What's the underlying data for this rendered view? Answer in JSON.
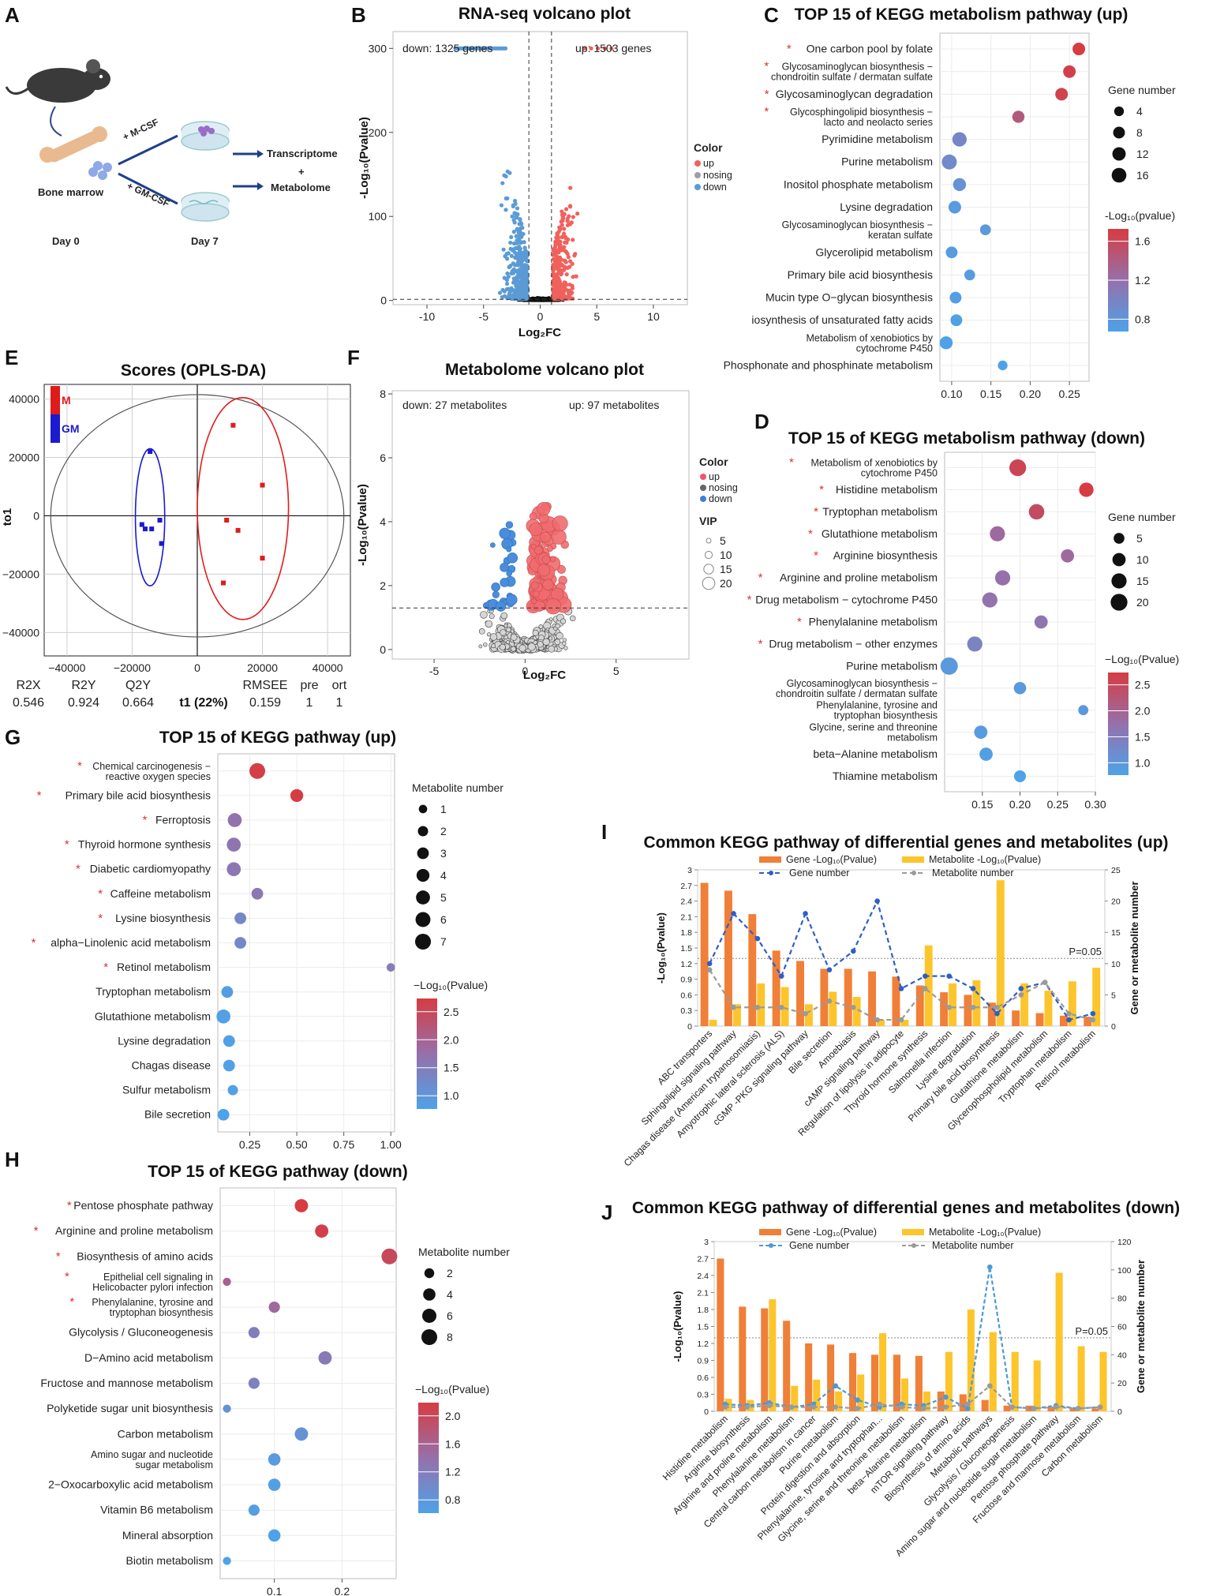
{
  "labels": {
    "A": "A",
    "B": "B",
    "C": "C",
    "D": "D",
    "E": "E",
    "F": "F",
    "G": "G",
    "H": "H",
    "I": "I",
    "J": "J"
  },
  "panelA": {
    "bone_marrow": "Bone marrow",
    "mcsf": "+ M-CSF",
    "gmcsf": "+ GM-CSF",
    "transcriptome": "Transcriptome",
    "plus": "+",
    "metabolome": "Metabolome",
    "day0": "Day 0",
    "day7": "Day 7"
  },
  "panelB": {
    "title": "RNA-seq volcano plot",
    "down_text": "down: 1325 genes",
    "up_text": "up: 1503 genes",
    "xlabel": "Log₂FC",
    "ylabel": "-Log₁₀(Pvalue)",
    "legend_title": "Color",
    "legend_items": [
      "up",
      "nosing",
      "down"
    ],
    "colors": {
      "up": "#f0615c",
      "nosing": "#9e9e9e",
      "down": "#5b9bd5"
    },
    "xticks": [
      -10,
      -5,
      0,
      5,
      10
    ],
    "yticks": [
      0,
      100,
      200,
      300
    ],
    "xlim": [
      -13,
      13
    ],
    "ylim": [
      -5,
      320
    ]
  },
  "panelC": {
    "title": "TOP 15 of  KEGG metabolism pathway (up)",
    "size_legend_title": "Gene number",
    "size_legend": [
      4,
      8,
      12,
      16
    ],
    "color_legend_title": "-Log₁₀(pvalue)",
    "color_ticks": [
      "1.6",
      "1.2",
      "0.8"
    ],
    "xticks": [
      "0.10",
      "0.15",
      "0.20",
      "0.25"
    ],
    "xlim": [
      0.085,
      0.275
    ],
    "rows": [
      {
        "name": "One carbon pool by folate",
        "star": true,
        "x": 0.262,
        "size": 10,
        "p": 1.85
      },
      {
        "name": "Glycosaminoglycan biosynthesis −\nchondroitin sulfate / dermatan sulfate",
        "star": true,
        "x": 0.25,
        "size": 10,
        "p": 1.8
      },
      {
        "name": "Glycosaminoglycan degradation",
        "star": true,
        "x": 0.24,
        "size": 10,
        "p": 1.78
      },
      {
        "name": "Glycosphingolipid biosynthesis −\nlacto and neolacto series",
        "star": true,
        "x": 0.185,
        "size": 9,
        "p": 1.5
      },
      {
        "name": "Pyrimidine metabolism",
        "star": false,
        "x": 0.11,
        "size": 15,
        "p": 0.95
      },
      {
        "name": "Purine metabolism",
        "star": false,
        "x": 0.097,
        "size": 17,
        "p": 0.9
      },
      {
        "name": "Inositol phosphate metabolism",
        "star": false,
        "x": 0.11,
        "size": 11,
        "p": 0.8
      },
      {
        "name": "Lysine degradation",
        "star": false,
        "x": 0.104,
        "size": 10,
        "p": 0.7
      },
      {
        "name": "Glycosaminoglycan biosynthesis −\nkeratan sulfate",
        "star": false,
        "x": 0.143,
        "size": 6,
        "p": 0.72
      },
      {
        "name": "Glycerolipid metabolism",
        "star": false,
        "x": 0.1,
        "size": 8,
        "p": 0.68
      },
      {
        "name": "Primary bile acid biosynthesis",
        "star": false,
        "x": 0.123,
        "size": 6,
        "p": 0.68
      },
      {
        "name": "Mucin type O−glycan biosynthesis",
        "star": false,
        "x": 0.105,
        "size": 8,
        "p": 0.65
      },
      {
        "name": "iosynthesis of unsaturated fatty acids",
        "star": false,
        "x": 0.106,
        "size": 8,
        "p": 0.62
      },
      {
        "name": "Metabolism of xenobiotics by\ncytochrome P450",
        "star": false,
        "x": 0.093,
        "size": 11,
        "p": 0.6
      },
      {
        "name": "Phosphonate and phosphinate metabolism",
        "star": false,
        "x": 0.165,
        "size": 4,
        "p": 0.6
      }
    ]
  },
  "panelD": {
    "title": "TOP 15 of  KEGG metabolism pathway (down)",
    "size_legend_title": "Gene number",
    "size_legend": [
      5,
      10,
      15,
      20
    ],
    "color_legend_title": "−Log₁₀(Pvalue)",
    "color_ticks": [
      "2.5",
      "2.0",
      "1.5",
      "1.0"
    ],
    "xticks": [
      "0.15",
      "0.20",
      "0.25",
      "0.30"
    ],
    "xlim": [
      0.1,
      0.3
    ],
    "rows": [
      {
        "name": "Metabolism of xenobiotics by\ncytochrome P450",
        "star": true,
        "x": 0.197,
        "size": 20,
        "p": 2.6
      },
      {
        "name": "Histidine metabolism",
        "star": true,
        "x": 0.288,
        "size": 13,
        "p": 2.75
      },
      {
        "name": "Tryptophan metabolism",
        "star": true,
        "x": 0.222,
        "size": 16,
        "p": 2.5
      },
      {
        "name": "Glutathione metabolism",
        "star": true,
        "x": 0.17,
        "size": 15,
        "p": 2.0
      },
      {
        "name": "Arginine biosynthesis",
        "star": true,
        "x": 0.263,
        "size": 10,
        "p": 2.0
      },
      {
        "name": "Arginine and proline metabolism",
        "star": true,
        "x": 0.177,
        "size": 15,
        "p": 1.9
      },
      {
        "name": "Drug metabolism − cytochrome P450",
        "star": true,
        "x": 0.16,
        "size": 15,
        "p": 1.85
      },
      {
        "name": "Phenylalanine metabolism",
        "star": true,
        "x": 0.228,
        "size": 10,
        "p": 1.8
      },
      {
        "name": "Drug metabolism − other enzymes",
        "star": true,
        "x": 0.14,
        "size": 15,
        "p": 1.6
      },
      {
        "name": "Purine metabolism",
        "star": false,
        "x": 0.106,
        "size": 22,
        "p": 1.2
      },
      {
        "name": "Glycosaminoglycan biosynthesis −\nchondroitin sulfate / dermatan sulfate",
        "star": false,
        "x": 0.2,
        "size": 8,
        "p": 1.2
      },
      {
        "name": "Phenylalanine, tyrosine and\ntryptophan biosynthesis",
        "star": false,
        "x": 0.284,
        "size": 4,
        "p": 1.2
      },
      {
        "name": "Glycine, serine and threonine\nmetabolism",
        "star": false,
        "x": 0.148,
        "size": 10,
        "p": 1.15
      },
      {
        "name": "beta−Alanine metabolism",
        "star": false,
        "x": 0.155,
        "size": 10,
        "p": 1.1
      },
      {
        "name": "Thiamine metabolism",
        "star": false,
        "x": 0.2,
        "size": 7,
        "p": 1.05
      }
    ]
  },
  "panelE": {
    "title": "Scores (OPLS-DA)",
    "legend": [
      "M",
      "GM"
    ],
    "xlabel": "t1 (22%)",
    "ylabel": "to1",
    "xticks": [
      -40000,
      -20000,
      0,
      20000,
      40000
    ],
    "xtick_labels": [
      "−40000",
      "−20000",
      "0",
      "20000",
      "40000"
    ],
    "yticks": [
      40000,
      20000,
      0,
      -20000,
      -40000
    ],
    "ytick_labels": [
      "40000",
      "20000",
      "0",
      "−20000",
      "−40000"
    ],
    "stats_header": [
      "R2X",
      "R2Y",
      "Q2Y",
      "RMSEE",
      "pre",
      "ort"
    ],
    "stats_values": [
      "0.546",
      "0.924",
      "0.664",
      "0.159",
      "1",
      "1"
    ],
    "M_points": [
      [
        11000,
        31000
      ],
      [
        20000,
        10500
      ],
      [
        9000,
        -1500
      ],
      [
        12500,
        -5000
      ],
      [
        20000,
        -14500
      ],
      [
        8000,
        -23000
      ]
    ],
    "GM_points": [
      [
        -14500,
        22000
      ],
      [
        -17000,
        -3000
      ],
      [
        -16000,
        -4500
      ],
      [
        -14000,
        -4500
      ],
      [
        -11500,
        -1500
      ],
      [
        -11000,
        -9500
      ]
    ]
  },
  "panelF": {
    "title": "Metabolome volcano plot",
    "down_text": "down: 27 metabolites",
    "up_text": "up: 97 metabolites",
    "xlabel": "Log₂FC",
    "ylabel": "-Log₁₀(Pvalue)",
    "legend_title": "Color",
    "legend_items": [
      "up",
      "nosing",
      "down"
    ],
    "vip_title": "VIP",
    "vip_legend": [
      5,
      10,
      15,
      20
    ],
    "xticks": [
      -5,
      0,
      5
    ],
    "yticks": [
      0,
      2,
      4,
      6,
      8
    ]
  },
  "panelG": {
    "title": "TOP 15 of  KEGG pathway (up)",
    "size_legend_title": "Metabolite number",
    "size_legend": [
      1,
      2,
      3,
      4,
      5,
      6,
      7
    ],
    "color_legend_title": "−Log₁₀(Pvalue)",
    "color_ticks": [
      "2.5",
      "2.0",
      "1.5",
      "1.0"
    ],
    "xticks": [
      "0.25",
      "0.50",
      "0.75",
      "1.00"
    ],
    "xlim": [
      0.08,
      1.02
    ],
    "rows": [
      {
        "name": "Chemical carcinogenesis −\nreactive oxygen species",
        "star": true,
        "x": 0.29,
        "size": 7,
        "p": 2.8
      },
      {
        "name": "Primary bile acid biosynthesis",
        "star": true,
        "x": 0.5,
        "size": 4,
        "p": 2.85
      },
      {
        "name": "Ferroptosis",
        "star": true,
        "x": 0.17,
        "size": 5,
        "p": 1.8
      },
      {
        "name": "Thyroid hormone synthesis",
        "star": true,
        "x": 0.165,
        "size": 5,
        "p": 1.75
      },
      {
        "name": "Diabetic cardiomyopathy",
        "star": true,
        "x": 0.165,
        "size": 5,
        "p": 1.7
      },
      {
        "name": "Caffeine metabolism",
        "star": true,
        "x": 0.29,
        "size": 3,
        "p": 1.7
      },
      {
        "name": "Lysine biosynthesis",
        "star": true,
        "x": 0.2,
        "size": 3,
        "p": 1.4
      },
      {
        "name": "alpha−Linolenic acid metabolism",
        "star": true,
        "x": 0.2,
        "size": 3,
        "p": 1.4
      },
      {
        "name": "Retinol metabolism",
        "star": true,
        "x": 1.0,
        "size": 1,
        "p": 1.6
      },
      {
        "name": "Tryptophan metabolism",
        "star": false,
        "x": 0.13,
        "size": 3,
        "p": 0.95
      },
      {
        "name": "Glutathione metabolism",
        "star": false,
        "x": 0.11,
        "size": 5,
        "p": 0.9
      },
      {
        "name": "Lysine degradation",
        "star": false,
        "x": 0.14,
        "size": 3,
        "p": 0.9
      },
      {
        "name": "Chagas disease",
        "star": false,
        "x": 0.14,
        "size": 3,
        "p": 0.9
      },
      {
        "name": "Sulfur metabolism",
        "star": false,
        "x": 0.16,
        "size": 2,
        "p": 0.9
      },
      {
        "name": "Bile secretion",
        "star": false,
        "x": 0.11,
        "size": 3,
        "p": 0.85
      }
    ]
  },
  "panelH": {
    "title": "TOP 15 of  KEGG pathway (down)",
    "size_legend_title": "Metabolite number",
    "size_legend": [
      2,
      4,
      6,
      8
    ],
    "color_legend_title": "−Log₁₀(Pvalue)",
    "color_ticks": [
      "2.0",
      "1.6",
      "1.2",
      "0.8"
    ],
    "xticks": [
      "0.1",
      "0.2"
    ],
    "xlim": [
      0.02,
      0.28
    ],
    "rows": [
      {
        "name": "Pentose phosphate pathway",
        "star": true,
        "x": 0.14,
        "size": 5,
        "p": 2.05
      },
      {
        "name": "Arginine and proline metabolism",
        "star": true,
        "x": 0.17,
        "size": 5,
        "p": 2.0
      },
      {
        "name": "Biosynthesis of amino acids",
        "star": true,
        "x": 0.27,
        "size": 8,
        "p": 1.9
      },
      {
        "name": "Epithelial cell signaling in\nHelicobacter pylori infection",
        "star": true,
        "x": 0.03,
        "size": 1,
        "p": 1.6
      },
      {
        "name": "Phenylalanine, tyrosine and\ntryptophan biosynthesis",
        "star": true,
        "x": 0.1,
        "size": 3,
        "p": 1.5
      },
      {
        "name": "Glycolysis / Gluconeogenesis",
        "star": false,
        "x": 0.07,
        "size": 3,
        "p": 1.25
      },
      {
        "name": "D−Amino acid metabolism",
        "star": false,
        "x": 0.175,
        "size": 5,
        "p": 1.3
      },
      {
        "name": "Fructose and mannose metabolism",
        "star": false,
        "x": 0.07,
        "size": 3,
        "p": 1.2
      },
      {
        "name": "Polyketide sugar unit biosynthesis",
        "star": false,
        "x": 0.03,
        "size": 1,
        "p": 1.0
      },
      {
        "name": "Carbon metabolism",
        "star": false,
        "x": 0.14,
        "size": 5,
        "p": 1.0
      },
      {
        "name": "Amino sugar and nucleotide\nsugar metabolism",
        "star": false,
        "x": 0.1,
        "size": 4,
        "p": 0.9
      },
      {
        "name": "2−Oxocarboxylic acid metabolism",
        "star": false,
        "x": 0.1,
        "size": 4,
        "p": 0.85
      },
      {
        "name": "Vitamin B6 metabolism",
        "star": false,
        "x": 0.07,
        "size": 3,
        "p": 0.85
      },
      {
        "name": "Mineral absorption",
        "star": false,
        "x": 0.1,
        "size": 4,
        "p": 0.8
      },
      {
        "name": "Biotin metabolism",
        "star": false,
        "x": 0.03,
        "size": 1,
        "p": 0.8
      }
    ]
  },
  "chart_data": [
    {
      "type": "bar",
      "title": "Common KEGG pathway of differential genes and metabolites (up)",
      "ylabel": "-Log₁₀(Pvalue)",
      "y2label": "Gene or metabolite number",
      "ylim": [
        0,
        3
      ],
      "y2lim": [
        0,
        25
      ],
      "yticks": [
        "0",
        "0.3",
        "0.6",
        "0.9",
        "1.2",
        "1.5",
        "1.8",
        "2.1",
        "2.4",
        "2.7",
        "3"
      ],
      "y2ticks": [
        "0",
        "5",
        "10",
        "15",
        "20",
        "25"
      ],
      "threshold_label": "P=0.05",
      "threshold": 1.3,
      "legend": [
        "Gene -Log₁₀(Pvalue)",
        "Metabolite -Log₁₀(Pvalue)",
        "Gene number",
        "Metabolite number"
      ],
      "categories": [
        "ABC transporters",
        "Sphingolipid signaling pathway",
        "Chagas disease (American trypanosomiasis)",
        "Amyotrophic lateral sclerosis (ALS)",
        "cGMP -PKG signaling pathway",
        "Bile secretion",
        "Amoebiasis",
        "cAMP signaling pathway",
        "Regulation of lipolysis in adipocyte",
        "Thyroid hormone synthesis",
        "Salmonella infection",
        "Lysine degradation",
        "Primary bile acid biosynthesis",
        "Glutathione metabolism",
        "Glycerophospholipid metabolism",
        "Tryptophan metabolism",
        "Retinol metabolism"
      ],
      "series": [
        {
          "name": "Gene -Log₁₀(Pvalue)",
          "kind": "bar",
          "color": "#f07f38",
          "values": [
            2.75,
            2.6,
            2.15,
            1.45,
            1.25,
            1.1,
            1.1,
            1.05,
            0.95,
            0.78,
            0.65,
            0.6,
            0.45,
            0.3,
            0.25,
            0.2,
            0.18
          ]
        },
        {
          "name": "Metabolite -Log₁₀(Pvalue)",
          "kind": "bar",
          "color": "#fcc52c",
          "values": [
            0.12,
            0.42,
            0.82,
            0.75,
            0.42,
            0.66,
            0.56,
            0.12,
            0.12,
            1.55,
            0.82,
            0.88,
            2.8,
            0.82,
            0.68,
            0.86,
            1.12
          ]
        },
        {
          "name": "Gene number",
          "kind": "line",
          "color": "#2f5fc6",
          "values": [
            10,
            18,
            14,
            8,
            18,
            9,
            12,
            20,
            6,
            8,
            8,
            6,
            2,
            6,
            7,
            1,
            2
          ]
        },
        {
          "name": "Metabolite number",
          "kind": "line",
          "color": "#9a9a9a",
          "values": [
            9,
            3,
            3,
            3,
            2,
            4,
            3,
            1,
            1,
            6,
            3,
            3,
            3,
            5,
            7,
            2,
            1
          ]
        }
      ]
    },
    {
      "type": "bar",
      "title": "Common KEGG pathway of differential genes and metabolites (down)",
      "ylabel": "-Log₁₀(Pvalue)",
      "y2label": "Gene or metabolite number",
      "ylim": [
        0,
        3
      ],
      "y2lim": [
        0,
        120
      ],
      "yticks": [
        "0",
        "0.3",
        "0.6",
        "0.9",
        "1.2",
        "1.5",
        "1.8",
        "2.1",
        "2.4",
        "2.7",
        "3"
      ],
      "y2ticks": [
        "0",
        "20",
        "40",
        "60",
        "80",
        "100",
        "120"
      ],
      "threshold_label": "P=0.05",
      "threshold": 1.3,
      "legend": [
        "Gene -Log₁₀(Pvalue)",
        "Metabolite -Log₁₀(Pvalue)",
        "Gene number",
        "Metabolite number"
      ],
      "categories": [
        "Histidine metabolism",
        "Arginine biosynthesis",
        "Arginine and proline metabolism",
        "Phenylalanine metabolism",
        "Central carbon metabolism in cancer",
        "Purine metabolism",
        "Protein digestion and absorption",
        "Phenylalanine, tyrosine and tryptophan...",
        "Glycine, serine and threonine metabolism",
        "beta−Alanine metabolism",
        "mTOR signaling pathway",
        "Biosynthesis of amino acids",
        "Metabolic pathways",
        "Glycolysis / Gluconeogenesis",
        "Amino sugar and nucleotide sugar metabolism",
        "Pentose phosphate pathway",
        "Fructose and mannose metabolism",
        "Carbon metabolism"
      ],
      "series": [
        {
          "name": "Gene -Log₁₀(Pvalue)",
          "kind": "bar",
          "color": "#f07f38",
          "values": [
            2.7,
            1.85,
            1.82,
            1.6,
            1.2,
            1.18,
            1.03,
            1.0,
            1.0,
            0.98,
            0.35,
            0.3,
            0.2,
            0.1,
            0.1,
            0.08,
            0.05,
            0.05
          ]
        },
        {
          "name": "Metabolite -Log₁₀(Pvalue)",
          "kind": "bar",
          "color": "#fcc52c",
          "values": [
            0.22,
            0.2,
            1.98,
            0.45,
            0.56,
            0.35,
            0.65,
            1.38,
            0.58,
            0.35,
            1.05,
            1.8,
            1.4,
            1.05,
            0.9,
            2.45,
            1.15,
            1.05
          ]
        },
        {
          "name": "Gene number",
          "kind": "line",
          "color": "#4a9ad8",
          "values": [
            5,
            4,
            6,
            3,
            5,
            18,
            8,
            3,
            5,
            4,
            10,
            2,
            102,
            3,
            2,
            4,
            2,
            3
          ]
        },
        {
          "name": "Metabolite number",
          "kind": "line",
          "color": "#9a9a9a",
          "values": [
            3,
            3,
            4,
            3,
            3,
            3,
            2,
            5,
            3,
            2,
            3,
            5,
            18,
            3,
            2,
            3,
            2,
            3
          ]
        }
      ]
    }
  ]
}
